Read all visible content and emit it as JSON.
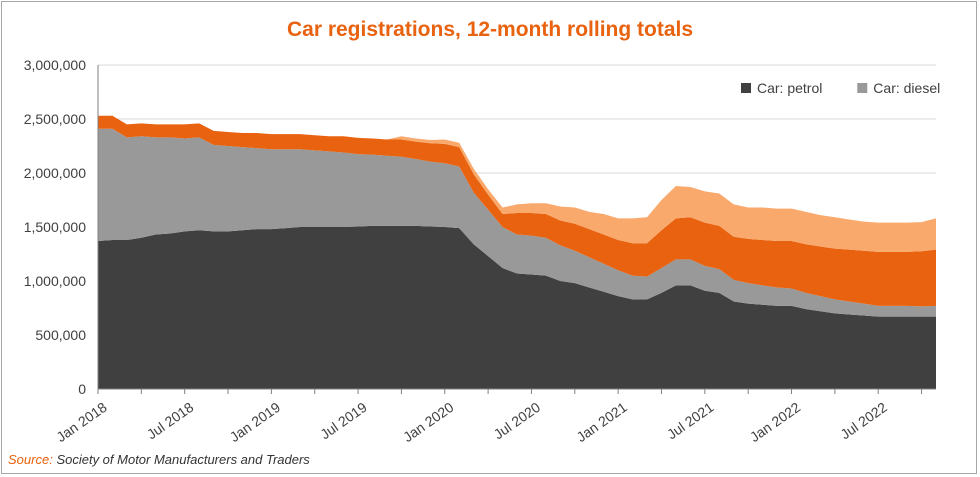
{
  "title": "Car registrations, 12-month rolling totals",
  "source": {
    "label": "Source:",
    "text": "Society of Motor Manufacturers and Traders"
  },
  "colors": {
    "title": "#E8620F",
    "source_label": "#E8620F",
    "grid": "#d9d9d9",
    "axis_text": "#404040"
  },
  "chart_data": {
    "type": "area",
    "stacked": true,
    "title": "Car registrations, 12-month rolling totals",
    "xlabel": "",
    "ylabel": "",
    "ylim": [
      0,
      3000000
    ],
    "yticks": [
      0,
      500000,
      1000000,
      1500000,
      2000000,
      2500000,
      3000000
    ],
    "ytick_labels": [
      "0",
      "500,000",
      "1,000,000",
      "1,500,000",
      "2,000,000",
      "2,500,000",
      "3,000,000"
    ],
    "x_tick_labels": [
      {
        "index": 0,
        "label": "Jan 2018"
      },
      {
        "index": 6,
        "label": "Jul 2018"
      },
      {
        "index": 12,
        "label": "Jan 2019"
      },
      {
        "index": 18,
        "label": "Jul 2019"
      },
      {
        "index": 24,
        "label": "Jan 2020"
      },
      {
        "index": 30,
        "label": "Jul 2020"
      },
      {
        "index": 36,
        "label": "Jan 2021"
      },
      {
        "index": 42,
        "label": "Jul 2021"
      },
      {
        "index": 48,
        "label": "Jan 2022"
      },
      {
        "index": 54,
        "label": "Jul 2022"
      }
    ],
    "x": [
      "2018-01",
      "2018-02",
      "2018-03",
      "2018-04",
      "2018-05",
      "2018-06",
      "2018-07",
      "2018-08",
      "2018-09",
      "2018-10",
      "2018-11",
      "2018-12",
      "2019-01",
      "2019-02",
      "2019-03",
      "2019-04",
      "2019-05",
      "2019-06",
      "2019-07",
      "2019-08",
      "2019-09",
      "2019-10",
      "2019-11",
      "2019-12",
      "2020-01",
      "2020-02",
      "2020-03",
      "2020-04",
      "2020-05",
      "2020-06",
      "2020-07",
      "2020-08",
      "2020-09",
      "2020-10",
      "2020-11",
      "2020-12",
      "2021-01",
      "2021-02",
      "2021-03",
      "2021-04",
      "2021-05",
      "2021-06",
      "2021-07",
      "2021-08",
      "2021-09",
      "2021-10",
      "2021-11",
      "2021-12",
      "2022-01",
      "2022-02",
      "2022-03",
      "2022-04",
      "2022-05",
      "2022-06",
      "2022-07",
      "2022-08",
      "2022-09",
      "2022-10",
      "2022-11"
    ],
    "legend": {
      "placement": "top-right",
      "entries": [
        "Car: petrol",
        "Car: diesel"
      ]
    },
    "series": [
      {
        "name": "Car: petrol",
        "color": "#404040",
        "values": [
          1370000,
          1380000,
          1380000,
          1400000,
          1430000,
          1440000,
          1460000,
          1470000,
          1460000,
          1460000,
          1470000,
          1480000,
          1480000,
          1490000,
          1500000,
          1500000,
          1500000,
          1500000,
          1505000,
          1510000,
          1510000,
          1510000,
          1510000,
          1505000,
          1500000,
          1490000,
          1340000,
          1230000,
          1120000,
          1070000,
          1060000,
          1050000,
          1000000,
          980000,
          940000,
          900000,
          860000,
          830000,
          830000,
          890000,
          960000,
          960000,
          910000,
          890000,
          810000,
          790000,
          780000,
          770000,
          770000,
          740000,
          720000,
          700000,
          690000,
          680000,
          670000,
          670000,
          670000,
          670000,
          670000
        ]
      },
      {
        "name": "",
        "color": "#999999",
        "values": [
          1040000,
          1030000,
          950000,
          940000,
          900000,
          890000,
          860000,
          860000,
          800000,
          790000,
          770000,
          750000,
          740000,
          730000,
          720000,
          710000,
          700000,
          690000,
          670000,
          660000,
          650000,
          640000,
          620000,
          600000,
          590000,
          570000,
          480000,
          430000,
          380000,
          360000,
          360000,
          350000,
          330000,
          300000,
          280000,
          260000,
          240000,
          220000,
          210000,
          230000,
          240000,
          240000,
          230000,
          220000,
          200000,
          190000,
          180000,
          170000,
          160000,
          150000,
          140000,
          130000,
          120000,
          110000,
          100000,
          100000,
          100000,
          95000,
          100000
        ]
      },
      {
        "name": "",
        "color": "#E8620F",
        "values": [
          120000,
          120000,
          120000,
          120000,
          120000,
          120000,
          130000,
          130000,
          130000,
          130000,
          130000,
          140000,
          140000,
          140000,
          140000,
          140000,
          140000,
          150000,
          150000,
          150000,
          150000,
          160000,
          160000,
          170000,
          180000,
          180000,
          170000,
          140000,
          120000,
          200000,
          210000,
          220000,
          230000,
          250000,
          260000,
          270000,
          280000,
          300000,
          310000,
          350000,
          380000,
          390000,
          400000,
          400000,
          400000,
          410000,
          420000,
          430000,
          440000,
          450000,
          460000,
          470000,
          480000,
          490000,
          500000,
          500000,
          500000,
          510000,
          520000
        ]
      },
      {
        "name": "",
        "color": "#F9A96B",
        "values": [
          0,
          0,
          0,
          0,
          0,
          0,
          0,
          0,
          0,
          0,
          0,
          0,
          0,
          0,
          0,
          0,
          0,
          0,
          0,
          0,
          0,
          30000,
          30000,
          30000,
          40000,
          40000,
          50000,
          50000,
          60000,
          80000,
          90000,
          100000,
          130000,
          150000,
          160000,
          190000,
          200000,
          230000,
          240000,
          280000,
          300000,
          280000,
          290000,
          300000,
          300000,
          290000,
          300000,
          300000,
          300000,
          300000,
          290000,
          290000,
          280000,
          270000,
          270000,
          270000,
          270000,
          270000,
          290000
        ]
      }
    ]
  }
}
